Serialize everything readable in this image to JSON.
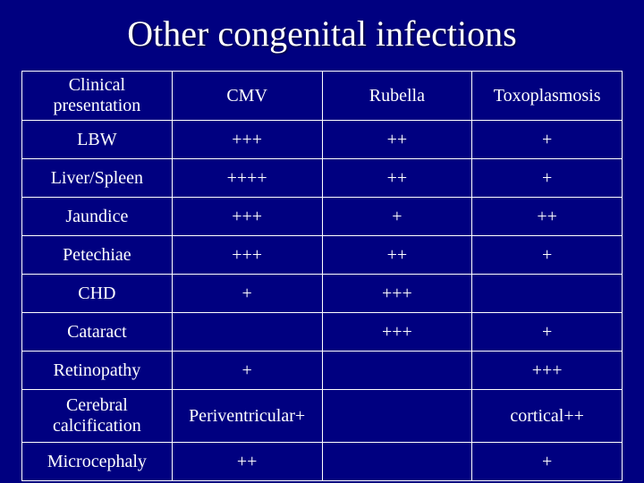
{
  "slide": {
    "title": "Other congenital infections",
    "background_color": "#000080",
    "text_color": "#ffffff",
    "border_color": "#ffffff",
    "title_fontsize": 40,
    "cell_fontsize": 20,
    "font_family": "Times New Roman"
  },
  "table": {
    "columns": [
      "Clinical presentation",
      "CMV",
      "Rubella",
      "Toxoplasmosis"
    ],
    "column_widths": [
      "25%",
      "25%",
      "25%",
      "25%"
    ],
    "rows": [
      {
        "label": "LBW",
        "cmv": "+++",
        "rubella": "++",
        "toxo": "+"
      },
      {
        "label": "Liver/Spleen",
        "cmv": "++++",
        "rubella": "++",
        "toxo": "+"
      },
      {
        "label": "Jaundice",
        "cmv": "+++",
        "rubella": "+",
        "toxo": "++"
      },
      {
        "label": "Petechiae",
        "cmv": "+++",
        "rubella": "++",
        "toxo": "+"
      },
      {
        "label": "CHD",
        "cmv": "+",
        "rubella": "+++",
        "toxo": ""
      },
      {
        "label": "Cataract",
        "cmv": "",
        "rubella": "+++",
        "toxo": "+"
      },
      {
        "label": "Retinopathy",
        "cmv": "+",
        "rubella": "",
        "toxo": "+++"
      },
      {
        "label": "Cerebral calcification",
        "cmv": "Periventricular+",
        "rubella": "",
        "toxo": "cortical++"
      },
      {
        "label": "Microcephaly",
        "cmv": "++",
        "rubella": "",
        "toxo": "+"
      }
    ]
  }
}
